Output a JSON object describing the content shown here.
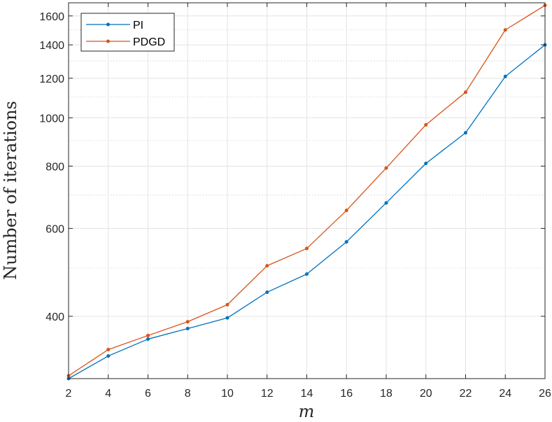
{
  "chart_data": {
    "type": "line",
    "xlabel": "m",
    "ylabel": "Number of iterations",
    "x": [
      2,
      4,
      6,
      8,
      10,
      12,
      14,
      16,
      18,
      20,
      22,
      24,
      26
    ],
    "xlim": [
      2,
      26
    ],
    "xticks": [
      "2",
      "4",
      "6",
      "8",
      "10",
      "12",
      "14",
      "16",
      "18",
      "20",
      "22",
      "24",
      "26"
    ],
    "ylim": [
      300,
      1700
    ],
    "yscale": "log",
    "yticks": [
      "400",
      "600",
      "800",
      "1000",
      "1200",
      "1400",
      "1600"
    ],
    "grid": true,
    "minor_grid": true,
    "legend_position": "top-left",
    "series": [
      {
        "name": "PI",
        "color": "#0072BD",
        "values": [
          300,
          333,
          360,
          378,
          397,
          447,
          486,
          564,
          675,
          810,
          933,
          1210,
          1400
        ]
      },
      {
        "name": "PDGD",
        "color": "#D95319",
        "values": [
          304,
          343,
          366,
          390,
          422,
          505,
          547,
          652,
          793,
          968,
          1125,
          1500,
          1680
        ]
      }
    ]
  }
}
